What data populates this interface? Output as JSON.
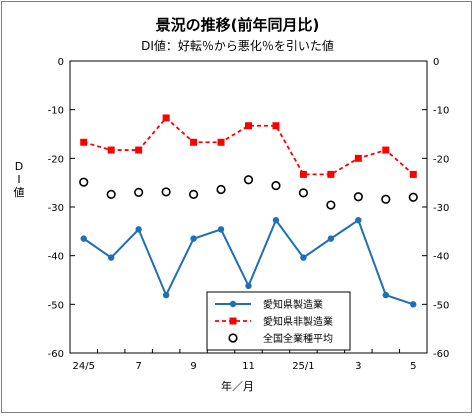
{
  "chart_data": {
    "type": "line",
    "title": "景況の推移(前年同月比)",
    "subtitle": "DI値：好転％から悪化％を引いた値",
    "ylabel": "DI値",
    "xlabel": "年／月",
    "ylim": [
      -60,
      0
    ],
    "yticks": [
      0,
      -10,
      -20,
      -30,
      -40,
      -50,
      -60
    ],
    "x": [
      "24/5",
      "24/6",
      "24/7",
      "24/8",
      "24/9",
      "24/10",
      "24/11",
      "24/12",
      "25/1",
      "25/2",
      "25/3",
      "25/4",
      "25/5"
    ],
    "xtick_labels": [
      "24/5",
      "",
      "7",
      "",
      "9",
      "",
      "11",
      "",
      "25/1",
      "",
      "3",
      "",
      "5"
    ],
    "series": [
      {
        "name": "愛知県製造業",
        "style": "solid-line-circle",
        "color": "#1f6fb6",
        "values": [
          -36.5,
          -40.4,
          -34.6,
          -48.1,
          -36.5,
          -34.6,
          -46.2,
          -32.7,
          -40.4,
          -36.5,
          -32.7,
          -48.1,
          -50.0
        ]
      },
      {
        "name": "愛知県非製造業",
        "style": "dashed-line-square",
        "color": "#ff0000",
        "values": [
          -16.7,
          -18.3,
          -18.3,
          -11.7,
          -16.7,
          -16.7,
          -13.3,
          -13.3,
          -23.3,
          -23.3,
          -20.0,
          -18.3,
          -23.3
        ]
      },
      {
        "name": "全国全業種平均",
        "style": "open-circle-marker",
        "color": "#000000",
        "values": [
          -24.9,
          -27.4,
          -27.0,
          -26.9,
          -27.4,
          -26.4,
          -24.4,
          -25.6,
          -27.1,
          -29.6,
          -27.9,
          -28.4,
          -28.0
        ]
      }
    ],
    "legend_position": "bottom-center",
    "grid": false,
    "right_axis_mirror": true
  }
}
